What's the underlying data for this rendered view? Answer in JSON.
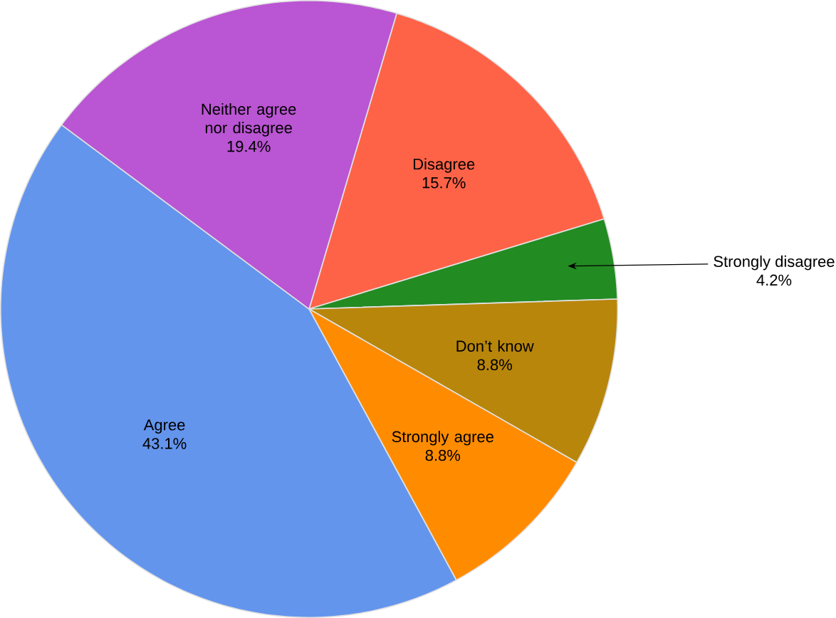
{
  "chart_data": {
    "type": "pie",
    "categories": [
      "Disagree",
      "Strongly disagree",
      "Don’t know",
      "Strongly agree",
      "Agree",
      "Neither agree nor disagree"
    ],
    "values": [
      15.7,
      4.2,
      8.8,
      8.8,
      43.1,
      19.4
    ],
    "colors": [
      "#ff6347",
      "#228b22",
      "#b8860b",
      "#ff8c00",
      "#6495ed",
      "#ba55d3"
    ],
    "value_labels": [
      "15.7%",
      "4.2%",
      "8.8%",
      "8.8%",
      "43.1%",
      "19.4%"
    ]
  }
}
